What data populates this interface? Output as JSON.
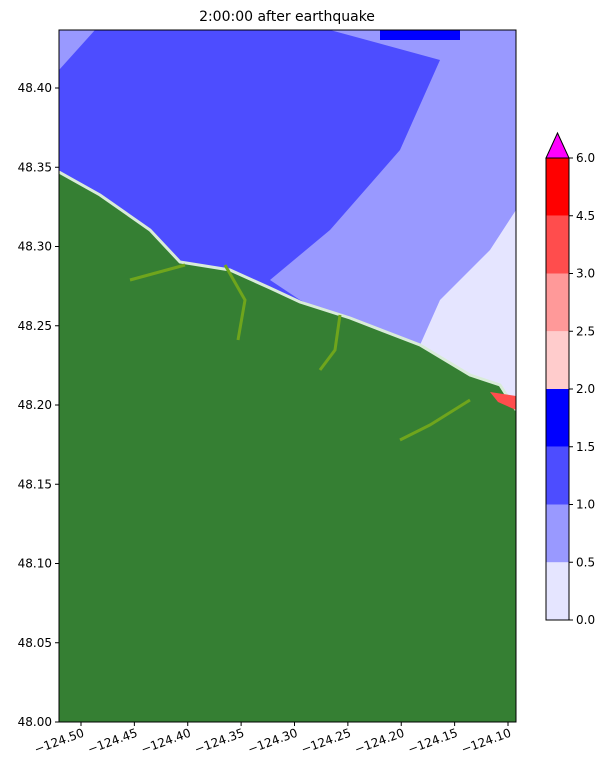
{
  "chart_data": {
    "type": "map",
    "title": "2:00:00 after earthquake",
    "xlim": [
      -124.5206,
      -124.0925
    ],
    "ylim": [
      48.0,
      48.4366
    ],
    "xticks": [
      {
        "value": -124.5,
        "label": "−124.50"
      },
      {
        "value": -124.45,
        "label": "−124.45"
      },
      {
        "value": -124.4,
        "label": "−124.40"
      },
      {
        "value": -124.35,
        "label": "−124.35"
      },
      {
        "value": -124.3,
        "label": "−124.30"
      },
      {
        "value": -124.25,
        "label": "−124.25"
      },
      {
        "value": -124.2,
        "label": "−124.20"
      },
      {
        "value": -124.15,
        "label": "−124.15"
      },
      {
        "value": -124.1,
        "label": "−124.10"
      }
    ],
    "yticks": [
      {
        "value": 48.0,
        "label": "48.00"
      },
      {
        "value": 48.05,
        "label": "48.05"
      },
      {
        "value": 48.1,
        "label": "48.10"
      },
      {
        "value": 48.15,
        "label": "48.15"
      },
      {
        "value": 48.2,
        "label": "48.20"
      },
      {
        "value": 48.25,
        "label": "48.25"
      },
      {
        "value": 48.3,
        "label": "48.30"
      },
      {
        "value": 48.35,
        "label": "48.35"
      },
      {
        "value": 48.4,
        "label": "48.40"
      }
    ],
    "colorbar": {
      "ticks": [
        {
          "value": 0,
          "label": "0.0"
        },
        {
          "value": 0.5,
          "label": "0.5"
        },
        {
          "value": 1,
          "label": "1.0"
        },
        {
          "value": 1.5,
          "label": "1.5"
        },
        {
          "value": 2,
          "label": "2.0"
        },
        {
          "value": 2.5,
          "label": "2.5"
        },
        {
          "value": 3,
          "label": "3.0"
        },
        {
          "value": 4.5,
          "label": "4.5"
        },
        {
          "value": 6,
          "label": "6.0"
        }
      ],
      "colors": [
        "#e5e5ff",
        "#9999ff",
        "#4d4dff",
        "#0000ff",
        "#ffcccc",
        "#ff9999",
        "#ff4d4d",
        "#ff0000"
      ],
      "extend_color": "#ff00ff"
    }
  }
}
